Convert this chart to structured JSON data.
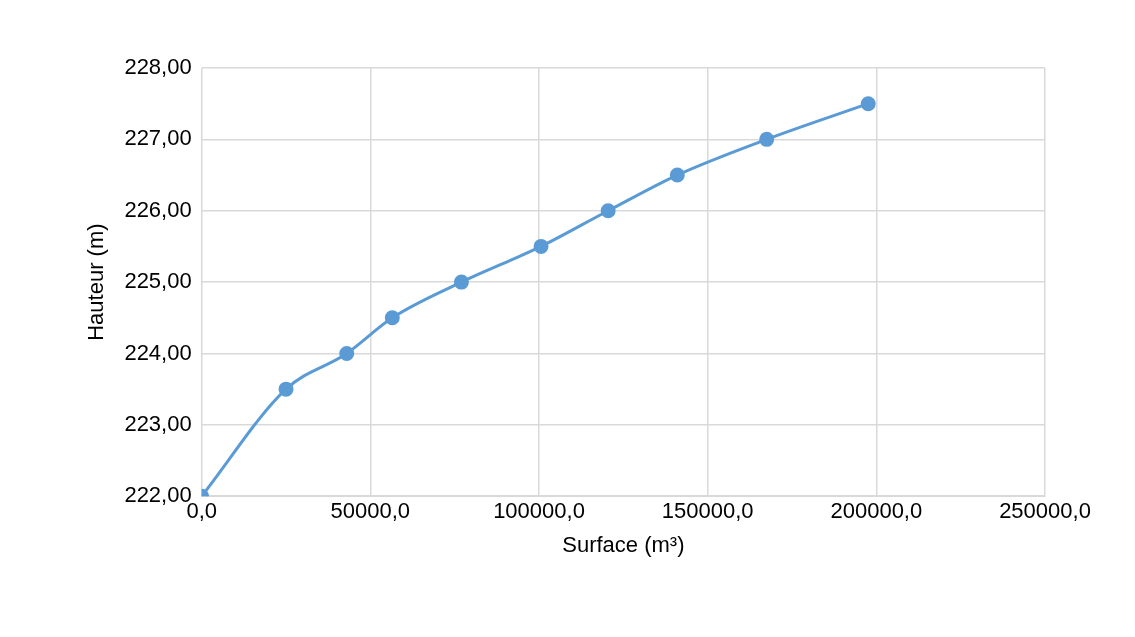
{
  "chart_data": {
    "type": "line",
    "xlabel": "Surface (m³)",
    "ylabel": "Hauteur (m)",
    "x": [
      0,
      25000,
      43000,
      56500,
      77000,
      100600,
      120500,
      141000,
      167500,
      197600
    ],
    "series": [
      {
        "color": "#5b9bd5",
        "values": [
          222,
          223.5,
          224,
          224.5,
          225,
          225.5,
          226,
          226.5,
          227,
          227.5
        ]
      }
    ],
    "xlim": [
      0,
      250000
    ],
    "xticks": [
      {
        "value": 0,
        "label": "0,0"
      },
      {
        "value": 50000,
        "label": "50000,0"
      },
      {
        "value": 100000,
        "label": "100000,0"
      },
      {
        "value": 150000,
        "label": "150000,0"
      },
      {
        "value": 200000,
        "label": "200000,0"
      },
      {
        "value": 250000,
        "label": "250000,0"
      }
    ],
    "ylim": [
      222,
      228
    ],
    "yticks": [
      {
        "value": 222,
        "label": "222,00"
      },
      {
        "value": 223,
        "label": "223,00"
      },
      {
        "value": 224,
        "label": "224,00"
      },
      {
        "value": 225,
        "label": "225,00"
      },
      {
        "value": 226,
        "label": "226,00"
      },
      {
        "value": 227,
        "label": "227,00"
      },
      {
        "value": 228,
        "label": "228,00"
      }
    ],
    "grid": true,
    "legend": false,
    "marker": "circle",
    "line_style": "solid"
  }
}
